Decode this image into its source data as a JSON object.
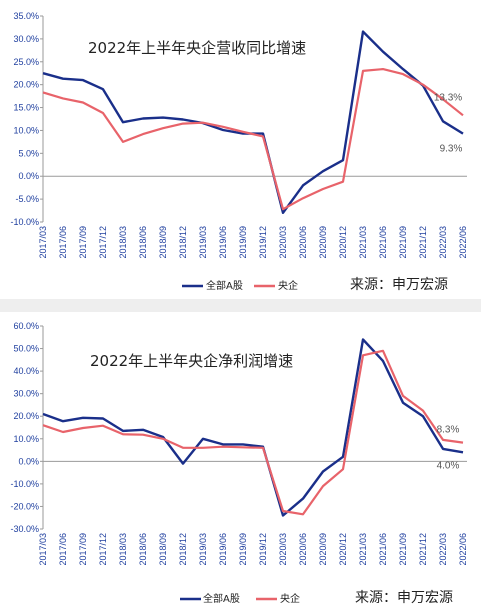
{
  "colors": {
    "all_a": "#1a2f8a",
    "soe": "#e8636a",
    "axis": "#1f3f9f"
  },
  "chart_data": [
    {
      "type": "line",
      "title": "2022年上半年央企营收同比增速",
      "x": [
        "2017/03",
        "2017/06",
        "2017/09",
        "2017/12",
        "2018/03",
        "2018/06",
        "2018/09",
        "2018/12",
        "2019/03",
        "2019/06",
        "2019/09",
        "2019/12",
        "2020/03",
        "2020/06",
        "2020/09",
        "2020/12",
        "2021/03",
        "2021/06",
        "2021/09",
        "2021/12",
        "2022/03",
        "2022/06"
      ],
      "y_ticks": [
        "35.0%",
        "30.0%",
        "25.0%",
        "20.0%",
        "15.0%",
        "10.0%",
        "5.0%",
        "0.0%",
        "-5.0%",
        "-10.0%"
      ],
      "ylim": [
        -10,
        35
      ],
      "series": [
        {
          "name": "全部A股",
          "values": [
            22.5,
            21.3,
            21.0,
            19.0,
            11.8,
            12.6,
            12.8,
            12.4,
            11.6,
            10.1,
            9.3,
            9.3,
            -8.0,
            -2.0,
            1.1,
            3.5,
            31.6,
            27.2,
            23.4,
            19.8,
            12.0,
            9.3
          ]
        },
        {
          "name": "央企",
          "values": [
            18.3,
            17.0,
            16.1,
            13.8,
            7.5,
            9.2,
            10.5,
            11.5,
            11.7,
            10.8,
            9.7,
            8.7,
            -7.2,
            -4.8,
            -2.8,
            -1.2,
            23.0,
            23.4,
            22.3,
            20.0,
            16.8,
            13.3
          ]
        }
      ],
      "annotations": [
        {
          "text": "13.3%",
          "series": "央企"
        },
        {
          "text": "9.3%",
          "series": "全部A股"
        }
      ],
      "legend": [
        "全部A股",
        "央企"
      ],
      "source": "来源：申万宏源"
    },
    {
      "type": "line",
      "title": "2022年上半年央企净利润增速",
      "x": [
        "2017/03",
        "2017/06",
        "2017/09",
        "2017/12",
        "2018/03",
        "2018/06",
        "2018/09",
        "2018/12",
        "2019/03",
        "2019/06",
        "2019/09",
        "2019/12",
        "2020/03",
        "2020/06",
        "2020/09",
        "2020/12",
        "2021/03",
        "2021/06",
        "2021/09",
        "2021/12",
        "2022/03",
        "2022/06"
      ],
      "y_ticks": [
        "60.0%",
        "50.0%",
        "40.0%",
        "30.0%",
        "20.0%",
        "10.0%",
        "0.0%",
        "-10.0%",
        "-20.0%",
        "-30.0%"
      ],
      "ylim": [
        -30,
        60
      ],
      "series": [
        {
          "name": "全部A股",
          "values": [
            21.0,
            17.8,
            19.3,
            19.0,
            13.5,
            14.0,
            10.8,
            -1.0,
            10.0,
            7.5,
            7.5,
            6.5,
            -24.0,
            -16.5,
            -4.5,
            2.0,
            54.0,
            44.5,
            26.0,
            20.0,
            5.5,
            4.0
          ]
        },
        {
          "name": "央企",
          "values": [
            16.0,
            13.0,
            14.8,
            15.8,
            12.0,
            11.8,
            10.0,
            6.0,
            6.0,
            6.5,
            6.2,
            6.0,
            -22.0,
            -23.5,
            -11.0,
            -3.5,
            47.0,
            49.0,
            29.0,
            22.5,
            9.5,
            8.3
          ]
        }
      ],
      "annotations": [
        {
          "text": "8.3%",
          "series": "央企"
        },
        {
          "text": "4.0%",
          "series": "全部A股"
        }
      ],
      "legend": [
        "全部A股",
        "央企"
      ],
      "source": "来源：申万宏源"
    }
  ]
}
